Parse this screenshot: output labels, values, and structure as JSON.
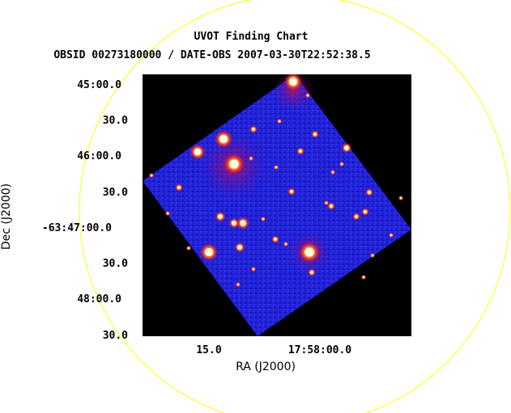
{
  "chart": {
    "title": "UVOT Finding Chart",
    "subtitle": "OBSID 00273180000 / DATE-OBS 2007-03-30T22:52:38.5",
    "xlabel": "RA (J2000)",
    "ylabel": "Dec (J2000)",
    "x_ticks": [
      "15.0",
      "17:58:00.0"
    ],
    "y_ticks": [
      "45:00.0",
      "30.0",
      "46:00.0",
      "30.0",
      "-63:47:00.0",
      "30.0",
      "48:00.0",
      "30.0"
    ]
  },
  "colors": {
    "background": "#ffffff",
    "image_blue": "#1a1ad8",
    "field_black": "#000000",
    "circle": "#ffff00",
    "stars": "#ffffc0",
    "glow": "#ff4000"
  }
}
